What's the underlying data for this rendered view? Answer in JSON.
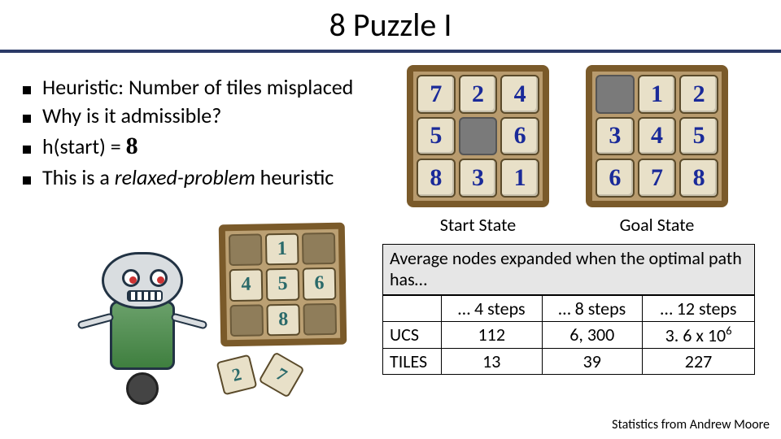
{
  "title": "8 Puzzle I",
  "bullets": [
    {
      "text": "Heuristic: Number of tiles misplaced"
    },
    {
      "text": "Why is it admissible?"
    },
    {
      "prefix": "h(start) = ",
      "value": "8"
    },
    {
      "prefix": "This is a ",
      "italic": "relaxed-problem",
      "suffix": " heuristic"
    }
  ],
  "puzzles": {
    "start": {
      "label": "Start State",
      "tiles": [
        "7",
        "2",
        "4",
        "5",
        "",
        "6",
        "8",
        "3",
        "1"
      ]
    },
    "goal": {
      "label": "Goal State",
      "tiles": [
        "",
        "1",
        "2",
        "3",
        "4",
        "5",
        "6",
        "7",
        "8"
      ]
    },
    "tile_fg": "#1a2a99",
    "tile_bg": "#e8e0c8",
    "blank_bg": "#7a7a7a",
    "frame": "#7a5a2a"
  },
  "robot_board": [
    "",
    "1",
    "",
    "4",
    "5",
    "6",
    "",
    "8",
    ""
  ],
  "loose_tiles": [
    "2",
    "7"
  ],
  "stats": {
    "caption": "Average nodes expanded when the optimal path has…",
    "cols": [
      "… 4 steps",
      "… 8 steps",
      "… 12 steps"
    ],
    "rows": [
      {
        "label": "UCS",
        "vals": [
          "112",
          "6, 300",
          "3. 6 x 10⁶"
        ]
      },
      {
        "label": "TILES",
        "vals": [
          "13",
          "39",
          "227"
        ]
      }
    ]
  },
  "credit": "Statistics from Andrew Moore"
}
